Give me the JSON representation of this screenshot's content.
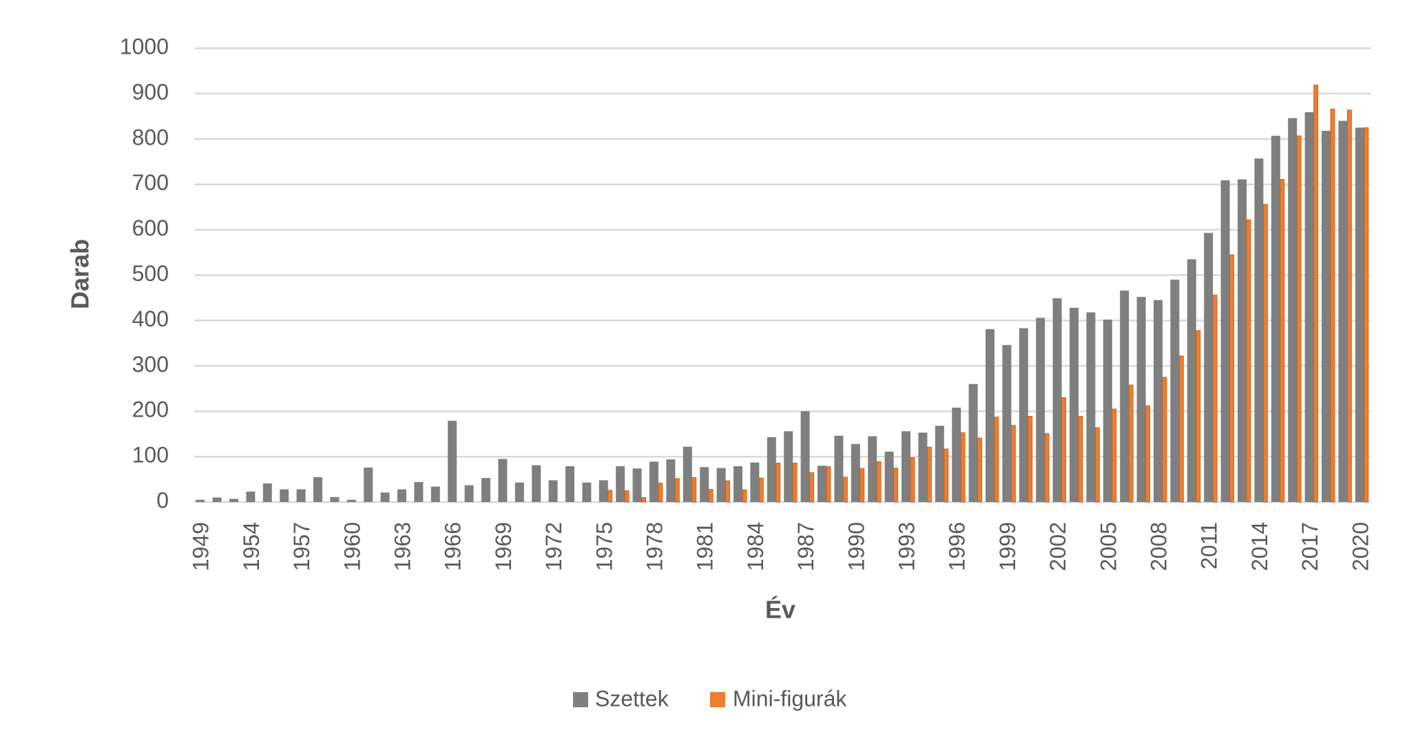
{
  "chart_data": {
    "type": "bar",
    "x_label": "Év",
    "y_label": "Darab",
    "categories": [
      "1949",
      null,
      null,
      "1954",
      null,
      null,
      "1957",
      null,
      null,
      "1960",
      null,
      null,
      "1963",
      null,
      null,
      "1966",
      null,
      null,
      "1969",
      null,
      null,
      "1972",
      null,
      null,
      "1975",
      null,
      null,
      "1978",
      null,
      null,
      "1981",
      null,
      null,
      "1984",
      null,
      null,
      "1987",
      null,
      null,
      "1990",
      null,
      null,
      "1993",
      null,
      null,
      "1996",
      null,
      null,
      "1999",
      null,
      null,
      "2002",
      null,
      null,
      "2005",
      null,
      null,
      "2008",
      null,
      null,
      "2011",
      null,
      null,
      "2014",
      null,
      null,
      "2017",
      null,
      null,
      "2020"
    ],
    "series": [
      {
        "name": "Szettek",
        "color": "#7f7f7f",
        "values": [
          5,
          10,
          7,
          23,
          41,
          28,
          28,
          55,
          11,
          5,
          76,
          21,
          28,
          44,
          34,
          179,
          37,
          53,
          95,
          43,
          81,
          48,
          79,
          43,
          48,
          79,
          74,
          89,
          94,
          122,
          77,
          75,
          79,
          87,
          143,
          156,
          200,
          80,
          146,
          128,
          145,
          111,
          156,
          153,
          168,
          208,
          260,
          381,
          346,
          383,
          406,
          449,
          428,
          418,
          402,
          466,
          452,
          445,
          490,
          535,
          593,
          709,
          711,
          757,
          807,
          846,
          859,
          818,
          840,
          825
        ]
      },
      {
        "name": "Mini-figurák",
        "color": "#ed7d31",
        "values": [
          0,
          0,
          0,
          0,
          0,
          0,
          0,
          0,
          0,
          0,
          0,
          0,
          0,
          0,
          0,
          0,
          0,
          0,
          0,
          0,
          0,
          0,
          0,
          0,
          26,
          25,
          10,
          42,
          52,
          54,
          28,
          47,
          27,
          53,
          86,
          86,
          65,
          78,
          55,
          74,
          89,
          75,
          98,
          121,
          117,
          153,
          141,
          187,
          169,
          189,
          151,
          230,
          189,
          164,
          205,
          258,
          212,
          275,
          322,
          378,
          456,
          545,
          622,
          656,
          711,
          807,
          919,
          866,
          864,
          825
        ]
      }
    ],
    "ylim": [
      0,
      1000
    ],
    "yticks": [
      0,
      100,
      200,
      300,
      400,
      500,
      600,
      700,
      800,
      900,
      1000
    ],
    "grid": true,
    "legend": "bottom"
  }
}
